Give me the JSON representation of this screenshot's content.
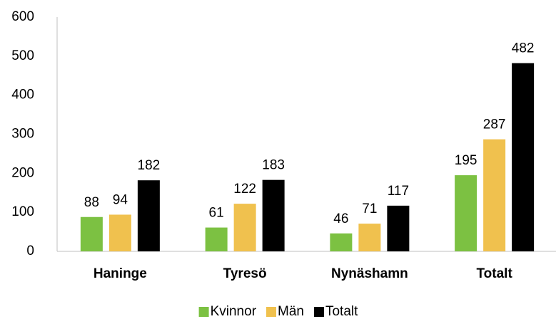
{
  "chart_data": {
    "type": "bar",
    "categories": [
      "Haninge",
      "Tyresö",
      "Nynäshamn",
      "Totalt"
    ],
    "series": [
      {
        "name": "Kvinnor",
        "color": "#7cc142",
        "values": [
          88,
          61,
          46,
          195
        ]
      },
      {
        "name": "Män",
        "color": "#f0c14e",
        "values": [
          94,
          122,
          71,
          287
        ]
      },
      {
        "name": "Totalt",
        "color": "#000000",
        "values": [
          182,
          183,
          117,
          482
        ]
      }
    ],
    "ylim": [
      0,
      600
    ],
    "yticks": [
      0,
      100,
      200,
      300,
      400,
      500,
      600
    ],
    "grid": false,
    "legend": "bottom"
  }
}
